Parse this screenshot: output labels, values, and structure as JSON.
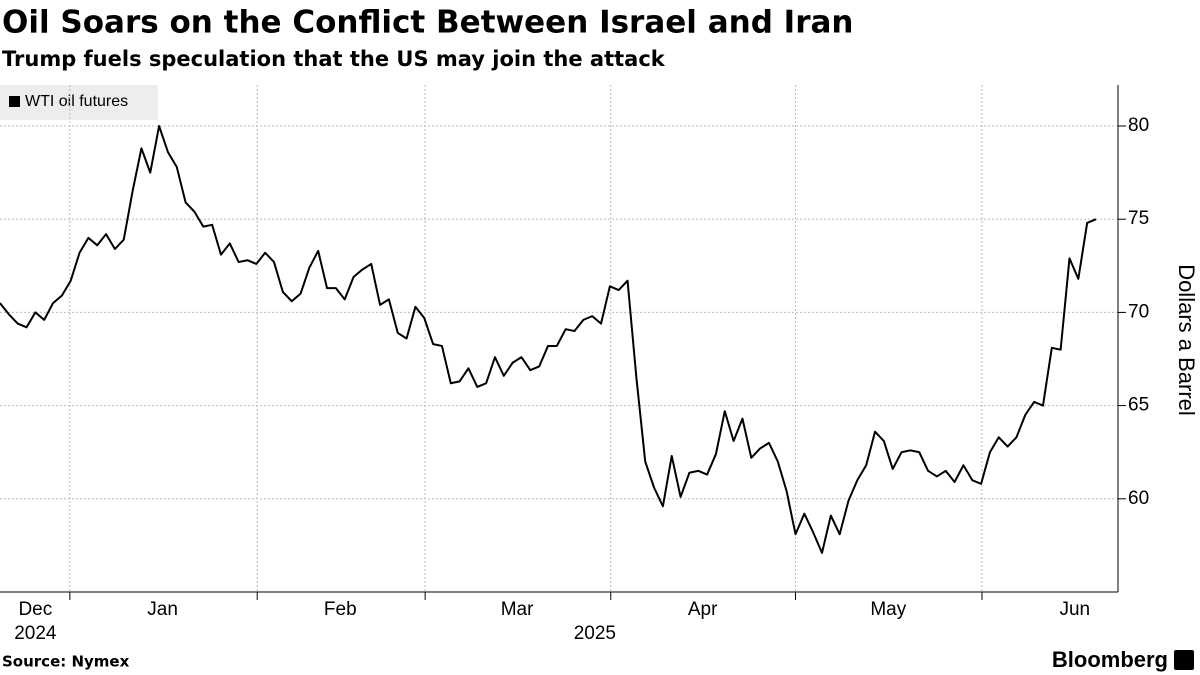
{
  "chart_data": {
    "type": "line",
    "title": "Oil Soars on the Conflict Between Israel and Iran",
    "subtitle": "Trump fuels speculation that the US may join the attack",
    "y_label": "Dollars a Barrel",
    "source": "Source: Nymex",
    "brand": "Bloomberg",
    "legend": "top-left",
    "grid": true,
    "series": [
      {
        "name": "WTI oil futures",
        "color": "#000000",
        "values": [
          70.5,
          69.9,
          69.4,
          69.2,
          70.0,
          69.6,
          70.5,
          70.9,
          71.7,
          73.2,
          74.0,
          73.6,
          74.2,
          73.4,
          73.9,
          76.5,
          78.8,
          77.5,
          80.0,
          78.6,
          77.8,
          75.9,
          75.4,
          74.6,
          74.7,
          73.1,
          73.7,
          72.7,
          72.8,
          72.6,
          73.2,
          72.7,
          71.1,
          70.6,
          71.0,
          72.4,
          73.3,
          71.3,
          71.3,
          70.7,
          71.9,
          72.3,
          72.6,
          70.4,
          70.7,
          68.9,
          68.6,
          70.3,
          69.7,
          68.3,
          68.2,
          66.2,
          66.3,
          67.0,
          66.0,
          66.2,
          67.6,
          66.6,
          67.3,
          67.6,
          66.9,
          67.1,
          68.2,
          68.2,
          69.1,
          69.0,
          69.6,
          69.8,
          69.4,
          71.4,
          71.2,
          71.7,
          66.5,
          62.0,
          60.6,
          59.6,
          62.3,
          60.1,
          61.4,
          61.5,
          61.3,
          62.4,
          64.7,
          63.1,
          64.3,
          62.2,
          62.7,
          63.0,
          62.0,
          60.4,
          58.1,
          59.2,
          58.2,
          57.1,
          59.1,
          58.1,
          59.9,
          61.0,
          61.8,
          63.6,
          63.1,
          61.6,
          62.5,
          62.6,
          62.5,
          61.5,
          61.2,
          61.5,
          60.9,
          61.8,
          61.0,
          60.8,
          62.5,
          63.3,
          62.8,
          63.3,
          64.5,
          65.2,
          65.0,
          68.1,
          68.0,
          72.9,
          71.8,
          74.8,
          75.0
        ]
      }
    ],
    "xlim": [
      0,
      124
    ],
    "xticks": [
      7.9,
      29.1,
      48.1,
      69.1,
      90.0,
      111.1
    ],
    "xtick_labels": [
      {
        "value": 4.0,
        "label": "Dec"
      },
      {
        "value": 18.4,
        "label": "Jan"
      },
      {
        "value": 38.5,
        "label": "Feb"
      },
      {
        "value": 58.5,
        "label": "Mar"
      },
      {
        "value": 79.5,
        "label": "Apr"
      },
      {
        "value": 100.5,
        "label": "May"
      },
      {
        "value": 121.6,
        "label": "Jun"
      }
    ],
    "year_labels": [
      {
        "value": 4.0,
        "label": "2024"
      },
      {
        "value": 67.3,
        "label": "2025"
      }
    ],
    "ylim": [
      55,
      82.2
    ],
    "yticks": [
      60,
      65,
      70,
      75,
      80
    ]
  }
}
